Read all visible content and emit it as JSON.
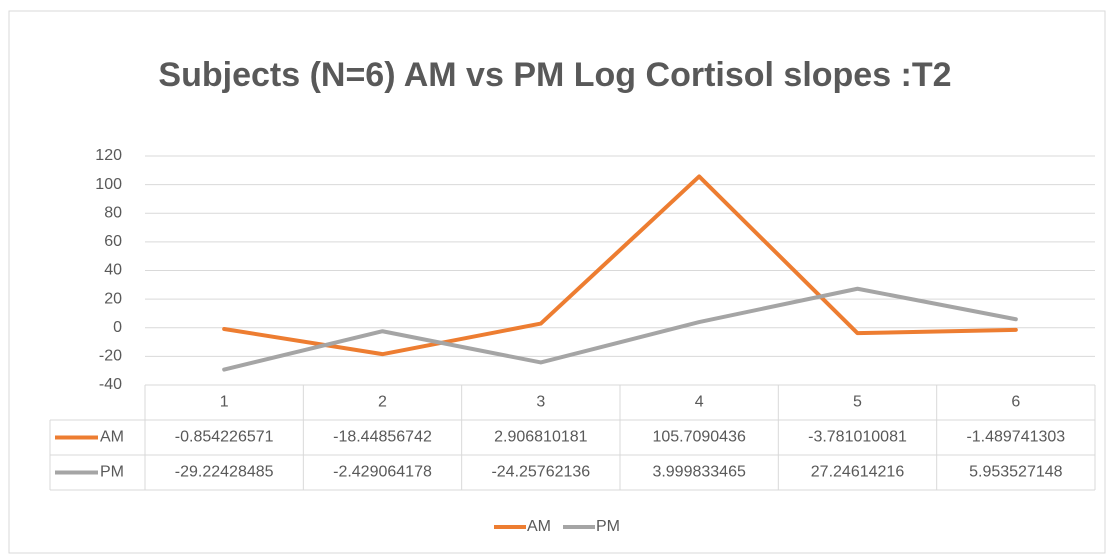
{
  "chart_data": {
    "type": "line",
    "title": "Subjects (N=6) AM vs PM Log Cortisol slopes :T2",
    "categories": [
      "1",
      "2",
      "3",
      "4",
      "5",
      "6"
    ],
    "series": [
      {
        "name": "AM",
        "color": "#ED7D31",
        "values": [
          -0.854226571,
          -18.44856742,
          2.906810181,
          105.7090436,
          -3.781010081,
          -1.489741303
        ]
      },
      {
        "name": "PM",
        "color": "#A5A5A5",
        "values": [
          -29.22428485,
          -2.429064178,
          -24.25762136,
          3.999833465,
          27.24614216,
          5.953527148
        ]
      }
    ],
    "ylim": [
      -40,
      120
    ],
    "yticks": [
      -40,
      -20,
      0,
      20,
      40,
      60,
      80,
      100,
      120
    ],
    "grid": true,
    "legend": "bottom",
    "data_table": true
  }
}
